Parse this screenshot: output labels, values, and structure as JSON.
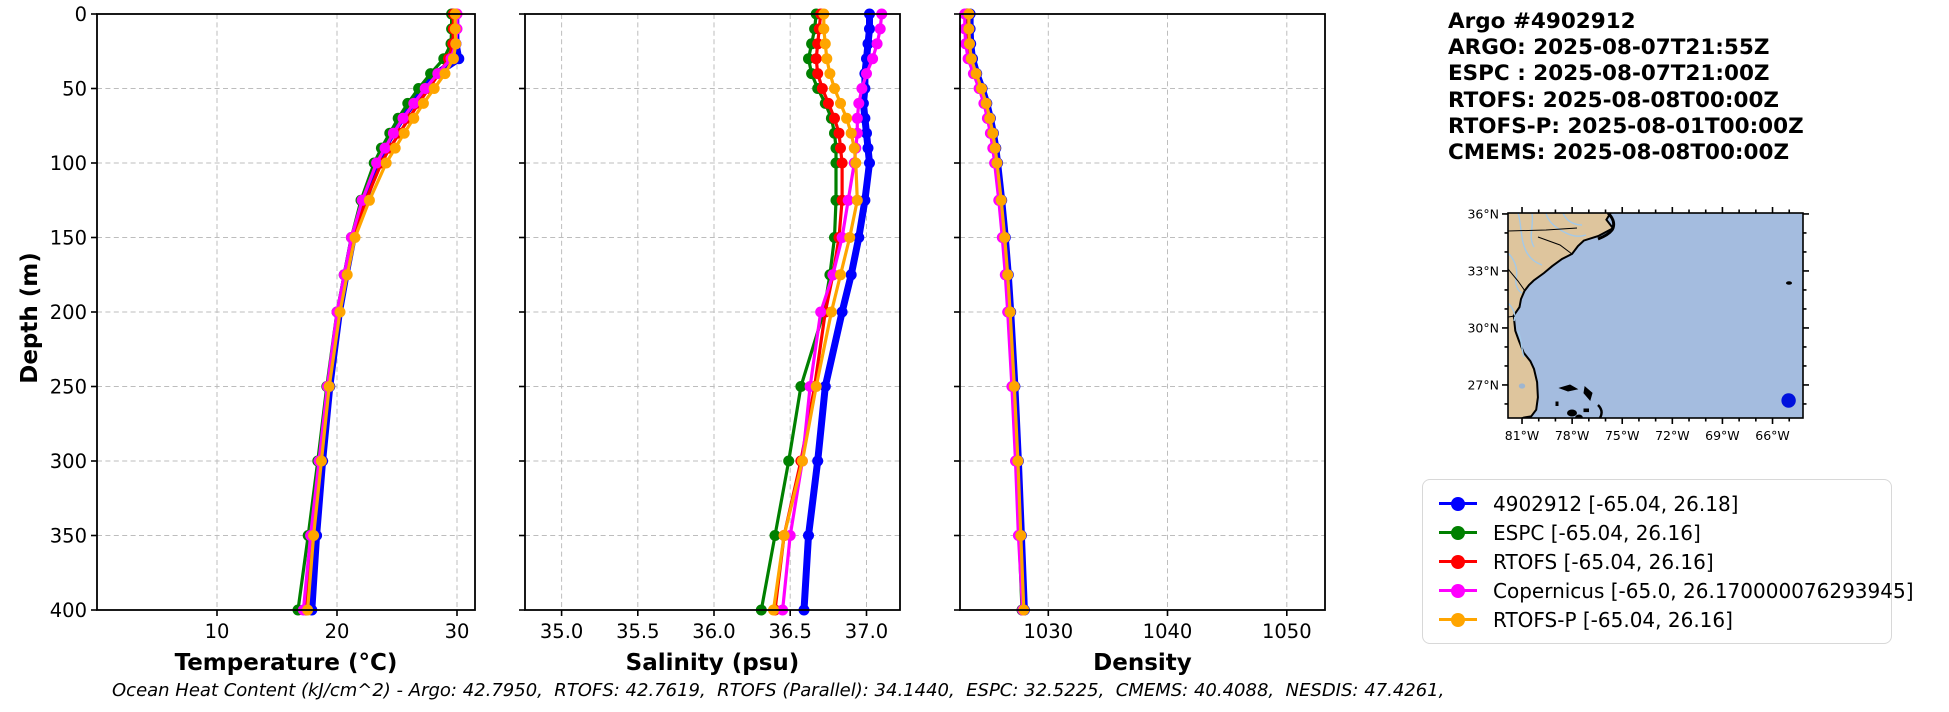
{
  "header": {
    "lines": [
      "Argo #4902912",
      "ARGO: 2025-08-07T21:55Z",
      "ESPC : 2025-08-07T21:00Z",
      "RTOFS: 2025-08-08T00:00Z",
      "RTOFS-P: 2025-08-01T00:00Z",
      "CMEMS: 2025-08-08T00:00Z"
    ]
  },
  "footer": {
    "ohc_text": "Ocean Heat Content (kJ/cm^2) - Argo: 42.7950,  RTOFS: 42.7619,  RTOFS (Parallel): 34.1440,  ESPC: 32.5225,  CMEMS: 40.4088,  NESDIS: 47.4261,"
  },
  "legend": {
    "items": [
      {
        "label": "4902912 [-65.04, 26.18]",
        "color": "#0000ff"
      },
      {
        "label": "ESPC [-65.04, 26.16]",
        "color": "#008000"
      },
      {
        "label": "RTOFS [-65.04, 26.16]",
        "color": "#ff0000"
      },
      {
        "label": "Copernicus [-65.0, 26.170000076293945]",
        "color": "#ff00ff"
      },
      {
        "label": "RTOFS-P [-65.04, 26.16]",
        "color": "#ffa500"
      }
    ]
  },
  "map": {
    "lon_ticks": [
      {
        "value": -81,
        "label": "81°W"
      },
      {
        "value": -78,
        "label": "78°W"
      },
      {
        "value": -75,
        "label": "75°W"
      },
      {
        "value": -72,
        "label": "72°W"
      },
      {
        "value": -69,
        "label": "69°W"
      },
      {
        "value": -66,
        "label": "66°W"
      }
    ],
    "lat_ticks": [
      {
        "value": 36,
        "label": "36°N"
      },
      {
        "value": 33,
        "label": "33°N"
      },
      {
        "value": 30,
        "label": "30°N"
      },
      {
        "value": 27,
        "label": "27°N"
      }
    ],
    "float_marker": {
      "lon": -65.04,
      "lat": 26.18,
      "color": "#0011dd"
    },
    "colors": {
      "land": "#dec59d",
      "ocean": "#a4bcdf",
      "river": "#a3c9e8",
      "coast": "#000000"
    }
  },
  "chart_data": {
    "type": "line",
    "title": "",
    "ylabel": "Depth (m)",
    "ylim": [
      0,
      400
    ],
    "yticks": [
      0,
      50,
      100,
      150,
      200,
      250,
      300,
      350,
      400
    ],
    "grid": true,
    "legend_position": "lower right (outside, figure level)",
    "depths": [
      0,
      10,
      20,
      30,
      40,
      50,
      60,
      70,
      80,
      90,
      100,
      125,
      150,
      175,
      200,
      250,
      300,
      350,
      400
    ],
    "plots": [
      {
        "key": "temperature",
        "xlabel": "Temperature (°C)",
        "xlim": [
          0,
          31.5
        ],
        "xticks": [
          10,
          20,
          30
        ],
        "xtick_labels": [
          "10",
          "20",
          "30"
        ]
      },
      {
        "key": "salinity",
        "xlabel": "Salinity (psu)",
        "xlim": [
          34.76,
          37.22
        ],
        "xticks": [
          35.0,
          35.5,
          36.0,
          36.5,
          37.0
        ],
        "xtick_labels": [
          "35.0",
          "35.5",
          "36.0",
          "36.5",
          "37.0"
        ]
      },
      {
        "key": "density",
        "xlabel": "Density",
        "xlim": [
          1022.6,
          1053.2
        ],
        "xticks": [
          1030,
          1040,
          1050
        ],
        "xtick_labels": [
          "1030",
          "1040",
          "1050"
        ]
      }
    ],
    "series": [
      {
        "name": "4902912",
        "color": "#0000ff",
        "line_width": 7,
        "temperature": [
          29.9,
          29.9,
          29.92,
          30.15,
          28.3,
          27.2,
          26.3,
          25.4,
          24.6,
          23.9,
          23.4,
          22.3,
          21.35,
          20.75,
          20.2,
          19.4,
          18.8,
          18.3,
          17.9
        ],
        "salinity": [
          37.02,
          37.02,
          37.01,
          37.0,
          36.99,
          36.99,
          36.98,
          36.99,
          37.0,
          37.01,
          37.02,
          36.99,
          36.95,
          36.9,
          36.84,
          36.73,
          36.68,
          36.62,
          36.59
        ],
        "density": [
          1023.45,
          1023.45,
          1023.5,
          1023.65,
          1024.0,
          1024.45,
          1024.85,
          1025.15,
          1025.4,
          1025.6,
          1025.75,
          1026.1,
          1026.4,
          1026.65,
          1026.85,
          1027.2,
          1027.5,
          1027.75,
          1028.0
        ]
      },
      {
        "name": "ESPC",
        "color": "#008000",
        "line_width": 3.2,
        "temperature": [
          29.55,
          29.55,
          29.5,
          28.9,
          27.8,
          26.8,
          25.9,
          25.1,
          24.4,
          23.7,
          23.1,
          22.0,
          21.2,
          20.6,
          20.0,
          19.15,
          18.4,
          17.6,
          16.75
        ],
        "salinity": [
          36.67,
          36.66,
          36.64,
          36.62,
          36.64,
          36.68,
          36.73,
          36.77,
          36.79,
          36.8,
          36.8,
          36.8,
          36.79,
          36.76,
          36.72,
          36.57,
          36.49,
          36.4,
          36.31
        ],
        "density": [
          1023.2,
          1023.2,
          1023.25,
          1023.4,
          1023.8,
          1024.25,
          1024.65,
          1024.95,
          1025.2,
          1025.4,
          1025.55,
          1025.9,
          1026.2,
          1026.45,
          1026.65,
          1027.0,
          1027.3,
          1027.55,
          1027.8
        ]
      },
      {
        "name": "RTOFS",
        "color": "#ff0000",
        "line_width": 3.2,
        "temperature": [
          29.7,
          29.7,
          29.65,
          29.3,
          28.5,
          27.65,
          26.8,
          26.0,
          25.2,
          24.4,
          23.7,
          22.4,
          21.4,
          20.7,
          20.1,
          19.3,
          18.6,
          17.95,
          17.45
        ],
        "salinity": [
          36.7,
          36.69,
          36.68,
          36.67,
          36.68,
          36.71,
          36.75,
          36.79,
          36.82,
          36.83,
          36.84,
          36.84,
          36.82,
          36.78,
          36.73,
          36.66,
          36.57,
          36.46,
          36.4
        ],
        "density": [
          1023.3,
          1023.3,
          1023.35,
          1023.5,
          1023.9,
          1024.35,
          1024.75,
          1025.05,
          1025.3,
          1025.5,
          1025.65,
          1026.0,
          1026.3,
          1026.55,
          1026.75,
          1027.1,
          1027.4,
          1027.65,
          1027.9
        ]
      },
      {
        "name": "Copernicus",
        "color": "#ff00ff",
        "line_width": 3.2,
        "temperature": [
          30.0,
          30.0,
          29.9,
          29.5,
          28.4,
          27.35,
          26.4,
          25.5,
          24.7,
          24.0,
          23.3,
          22.1,
          21.2,
          20.6,
          20.0,
          19.2,
          18.5,
          17.8,
          17.2
        ],
        "salinity": [
          37.1,
          37.09,
          37.07,
          37.04,
          37.0,
          36.97,
          36.95,
          36.94,
          36.94,
          36.93,
          36.92,
          36.88,
          36.84,
          36.78,
          36.7,
          36.63,
          36.58,
          36.5,
          36.45
        ],
        "density": [
          1023.0,
          1023.0,
          1023.08,
          1023.28,
          1023.72,
          1024.2,
          1024.6,
          1024.9,
          1025.15,
          1025.35,
          1025.5,
          1025.85,
          1026.15,
          1026.4,
          1026.6,
          1026.95,
          1027.25,
          1027.5,
          1027.85
        ]
      },
      {
        "name": "RTOFS-P",
        "color": "#ffa500",
        "line_width": 3.2,
        "temperature": [
          29.85,
          29.85,
          29.9,
          29.7,
          29.0,
          28.1,
          27.2,
          26.4,
          25.6,
          24.85,
          24.1,
          22.7,
          21.5,
          20.85,
          20.25,
          19.35,
          18.7,
          18.05,
          17.55
        ],
        "salinity": [
          36.72,
          36.72,
          36.73,
          36.74,
          36.76,
          36.79,
          36.83,
          36.87,
          36.9,
          36.92,
          36.93,
          36.94,
          36.89,
          36.83,
          36.77,
          36.67,
          36.58,
          36.46,
          36.39
        ],
        "density": [
          1023.35,
          1023.35,
          1023.4,
          1023.55,
          1023.95,
          1024.4,
          1024.8,
          1025.1,
          1025.35,
          1025.55,
          1025.7,
          1026.05,
          1026.35,
          1026.6,
          1026.8,
          1027.15,
          1027.45,
          1027.7,
          1027.95
        ]
      }
    ]
  }
}
